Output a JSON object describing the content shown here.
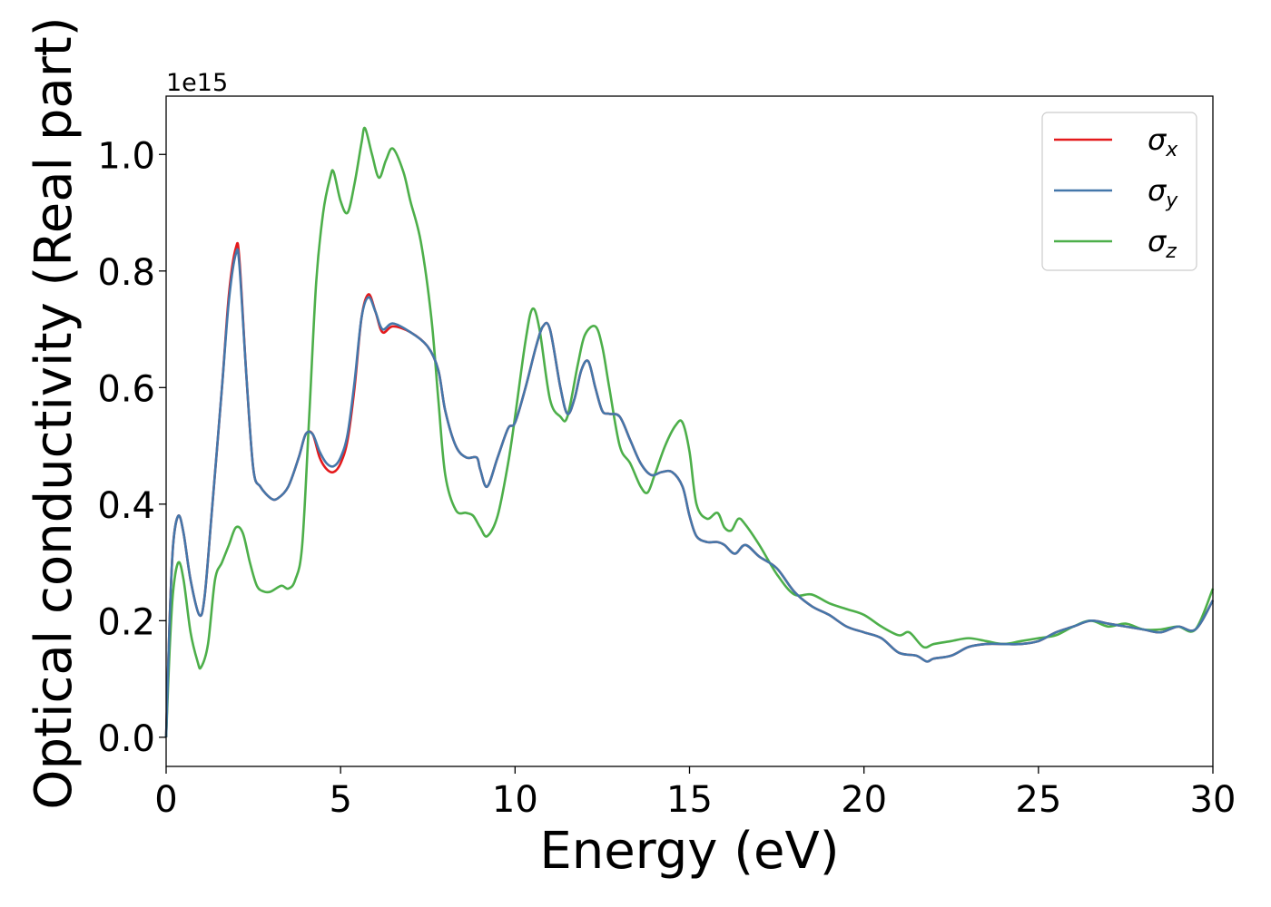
{
  "chart_data": {
    "type": "line",
    "xlabel": "Energy (eV)",
    "ylabel": "Optical conductivity (Real part)",
    "offset_text": "1e15",
    "xlim": [
      0,
      30
    ],
    "ylim": [
      -0.05,
      1.1
    ],
    "xticks": [
      0,
      5,
      10,
      15,
      20,
      25,
      30
    ],
    "xtick_labels": [
      "0",
      "5",
      "10",
      "15",
      "20",
      "25",
      "30"
    ],
    "yticks": [
      0.0,
      0.2,
      0.4,
      0.6,
      0.8,
      1.0
    ],
    "ytick_labels": [
      "0.0",
      "0.2",
      "0.4",
      "0.6",
      "0.8",
      "1.0"
    ],
    "legend_position": "top-right",
    "grid": false,
    "series": [
      {
        "name": "σ",
        "subscript": "x",
        "color": "#e41a1c",
        "x": [
          0,
          0.1,
          0.2,
          0.35,
          0.5,
          0.7,
          0.95,
          1.1,
          1.3,
          1.6,
          1.8,
          2.0,
          2.1,
          2.3,
          2.5,
          2.7,
          3.0,
          3.2,
          3.5,
          3.8,
          4.0,
          4.2,
          4.4,
          4.6,
          4.8,
          5.0,
          5.2,
          5.4,
          5.6,
          5.8,
          6.0,
          6.2,
          6.5,
          7.0,
          7.5,
          7.8,
          8.0,
          8.3,
          8.6,
          8.9,
          9.0,
          9.2,
          9.5,
          9.8,
          10.0,
          10.3,
          10.6,
          10.8,
          11.0,
          11.3,
          11.5,
          11.7,
          11.9,
          12.1,
          12.3,
          12.5,
          12.7,
          13.0,
          13.3,
          13.6,
          13.9,
          14.2,
          14.5,
          14.8,
          15.0,
          15.2,
          15.5,
          15.8,
          16.0,
          16.3,
          16.6,
          17.0,
          17.5,
          18.0,
          18.5,
          19.0,
          19.5,
          20.0,
          20.5,
          21.0,
          21.5,
          21.8,
          22.0,
          22.5,
          23.0,
          23.5,
          24.0,
          24.5,
          25.0,
          25.5,
          26.0,
          26.5,
          27.0,
          27.5,
          28.0,
          28.5,
          29.0,
          29.5,
          30.0
        ],
        "y": [
          0.0,
          0.2,
          0.33,
          0.38,
          0.35,
          0.27,
          0.21,
          0.24,
          0.38,
          0.6,
          0.76,
          0.84,
          0.82,
          0.62,
          0.46,
          0.43,
          0.41,
          0.41,
          0.43,
          0.48,
          0.52,
          0.52,
          0.48,
          0.46,
          0.455,
          0.47,
          0.51,
          0.6,
          0.72,
          0.76,
          0.73,
          0.695,
          0.705,
          0.695,
          0.67,
          0.63,
          0.56,
          0.5,
          0.48,
          0.48,
          0.46,
          0.43,
          0.48,
          0.53,
          0.54,
          0.6,
          0.67,
          0.705,
          0.7,
          0.6,
          0.555,
          0.58,
          0.63,
          0.645,
          0.6,
          0.56,
          0.555,
          0.55,
          0.51,
          0.47,
          0.45,
          0.455,
          0.455,
          0.43,
          0.38,
          0.345,
          0.335,
          0.335,
          0.33,
          0.315,
          0.33,
          0.31,
          0.29,
          0.25,
          0.225,
          0.21,
          0.19,
          0.18,
          0.17,
          0.145,
          0.14,
          0.13,
          0.135,
          0.14,
          0.155,
          0.16,
          0.16,
          0.16,
          0.165,
          0.18,
          0.19,
          0.2,
          0.195,
          0.19,
          0.185,
          0.18,
          0.19,
          0.185,
          0.235
        ]
      },
      {
        "name": "σ",
        "subscript": "y",
        "color": "#4477aa",
        "x": [
          0,
          0.1,
          0.2,
          0.35,
          0.5,
          0.7,
          0.95,
          1.1,
          1.3,
          1.6,
          1.8,
          2.0,
          2.1,
          2.3,
          2.5,
          2.7,
          3.0,
          3.2,
          3.5,
          3.8,
          4.0,
          4.2,
          4.4,
          4.6,
          4.8,
          5.0,
          5.2,
          5.4,
          5.6,
          5.8,
          6.0,
          6.2,
          6.5,
          7.0,
          7.5,
          7.8,
          8.0,
          8.3,
          8.6,
          8.9,
          9.0,
          9.2,
          9.5,
          9.8,
          10.0,
          10.3,
          10.6,
          10.8,
          11.0,
          11.3,
          11.5,
          11.7,
          11.9,
          12.1,
          12.3,
          12.5,
          12.7,
          13.0,
          13.3,
          13.6,
          13.9,
          14.2,
          14.5,
          14.8,
          15.0,
          15.2,
          15.5,
          15.8,
          16.0,
          16.3,
          16.6,
          17.0,
          17.5,
          18.0,
          18.5,
          19.0,
          19.5,
          20.0,
          20.5,
          21.0,
          21.5,
          21.8,
          22.0,
          22.5,
          23.0,
          23.5,
          24.0,
          24.5,
          25.0,
          25.5,
          26.0,
          26.5,
          27.0,
          27.5,
          28.0,
          28.5,
          29.0,
          29.5,
          30.0
        ],
        "y": [
          0.0,
          0.2,
          0.33,
          0.38,
          0.35,
          0.27,
          0.21,
          0.24,
          0.38,
          0.6,
          0.75,
          0.83,
          0.81,
          0.62,
          0.46,
          0.43,
          0.41,
          0.41,
          0.43,
          0.48,
          0.52,
          0.52,
          0.49,
          0.47,
          0.465,
          0.48,
          0.52,
          0.61,
          0.72,
          0.755,
          0.73,
          0.7,
          0.71,
          0.695,
          0.67,
          0.63,
          0.56,
          0.5,
          0.48,
          0.48,
          0.46,
          0.43,
          0.48,
          0.53,
          0.54,
          0.6,
          0.67,
          0.705,
          0.7,
          0.6,
          0.555,
          0.58,
          0.63,
          0.645,
          0.6,
          0.56,
          0.555,
          0.55,
          0.51,
          0.47,
          0.45,
          0.455,
          0.455,
          0.43,
          0.38,
          0.345,
          0.335,
          0.335,
          0.33,
          0.315,
          0.33,
          0.31,
          0.29,
          0.25,
          0.225,
          0.21,
          0.19,
          0.18,
          0.17,
          0.145,
          0.14,
          0.13,
          0.135,
          0.14,
          0.155,
          0.16,
          0.16,
          0.16,
          0.165,
          0.18,
          0.19,
          0.2,
          0.195,
          0.19,
          0.185,
          0.18,
          0.19,
          0.185,
          0.235
        ]
      },
      {
        "name": "σ",
        "subscript": "z",
        "color": "#4daf4a",
        "x": [
          0,
          0.1,
          0.2,
          0.35,
          0.5,
          0.7,
          0.9,
          1.0,
          1.2,
          1.4,
          1.6,
          1.8,
          2.0,
          2.2,
          2.4,
          2.6,
          2.8,
          3.0,
          3.3,
          3.5,
          3.7,
          3.9,
          4.1,
          4.3,
          4.5,
          4.7,
          4.8,
          5.0,
          5.2,
          5.4,
          5.6,
          5.7,
          5.9,
          6.1,
          6.3,
          6.5,
          6.8,
          7.0,
          7.3,
          7.6,
          7.8,
          8.0,
          8.3,
          8.6,
          8.8,
          9.0,
          9.2,
          9.5,
          9.8,
          10.0,
          10.3,
          10.5,
          10.7,
          11.0,
          11.3,
          11.5,
          11.8,
          12.0,
          12.3,
          12.5,
          12.7,
          13.0,
          13.3,
          13.6,
          13.8,
          14.0,
          14.3,
          14.6,
          14.8,
          15.0,
          15.2,
          15.5,
          15.8,
          16.0,
          16.2,
          16.4,
          16.6,
          17.0,
          17.5,
          18.0,
          18.5,
          19.0,
          19.5,
          20.0,
          20.5,
          21.0,
          21.3,
          21.7,
          22.0,
          22.5,
          23.0,
          23.5,
          24.0,
          24.5,
          25.0,
          25.5,
          26.0,
          26.5,
          27.0,
          27.5,
          28.0,
          28.5,
          29.0,
          29.5,
          30.0
        ],
        "y": [
          0.0,
          0.15,
          0.25,
          0.3,
          0.27,
          0.18,
          0.13,
          0.12,
          0.16,
          0.27,
          0.3,
          0.33,
          0.36,
          0.35,
          0.3,
          0.26,
          0.25,
          0.25,
          0.26,
          0.255,
          0.27,
          0.33,
          0.55,
          0.78,
          0.9,
          0.96,
          0.97,
          0.92,
          0.9,
          0.95,
          1.02,
          1.045,
          1.0,
          0.96,
          0.99,
          1.01,
          0.97,
          0.92,
          0.85,
          0.72,
          0.58,
          0.45,
          0.39,
          0.385,
          0.38,
          0.36,
          0.345,
          0.38,
          0.47,
          0.55,
          0.68,
          0.735,
          0.7,
          0.58,
          0.55,
          0.55,
          0.64,
          0.69,
          0.705,
          0.67,
          0.6,
          0.5,
          0.47,
          0.43,
          0.42,
          0.45,
          0.5,
          0.535,
          0.54,
          0.49,
          0.4,
          0.375,
          0.385,
          0.36,
          0.355,
          0.375,
          0.365,
          0.33,
          0.28,
          0.245,
          0.245,
          0.23,
          0.22,
          0.21,
          0.19,
          0.175,
          0.18,
          0.155,
          0.16,
          0.165,
          0.17,
          0.165,
          0.16,
          0.165,
          0.17,
          0.175,
          0.19,
          0.2,
          0.19,
          0.195,
          0.185,
          0.185,
          0.19,
          0.185,
          0.255
        ]
      }
    ]
  }
}
